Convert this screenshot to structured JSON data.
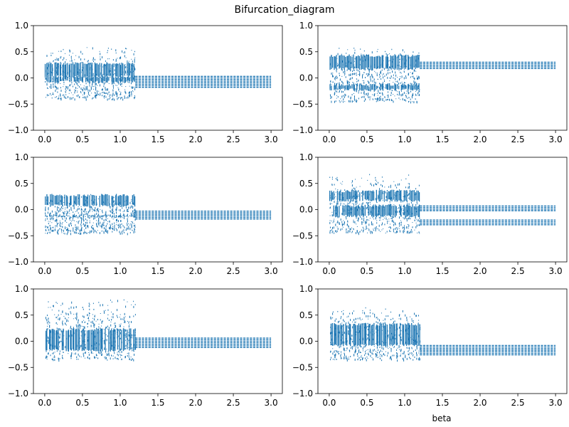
{
  "figure": {
    "title": "Bifurcation_diagram",
    "xlabel": "beta",
    "marker_color": "#1f77b4",
    "xticks": [
      0.0,
      0.5,
      1.0,
      1.5,
      2.0,
      2.5,
      3.0
    ],
    "xtick_labels": [
      "0.0",
      "0.5",
      "1.0",
      "1.5",
      "2.0",
      "2.5",
      "3.0"
    ],
    "yticks": [
      1.0,
      0.5,
      0.0,
      -0.5,
      -1.0
    ],
    "ytick_labels": [
      "1.0",
      "0.5",
      "0.0",
      "−0.5",
      "−1.0"
    ]
  },
  "chart_data": [
    {
      "type": "scatter",
      "panel": "top-left",
      "xlim": [
        -0.15,
        3.15
      ],
      "ylim": [
        -1.0,
        1.0
      ],
      "grid": false,
      "chaotic_region": {
        "beta_range": [
          0.0,
          1.2
        ],
        "y_min": -0.4,
        "y_max": 0.6,
        "dense_bands": [
          [
            0.0,
            0.3
          ],
          [
            -0.1,
            0.05
          ]
        ]
      },
      "periodic_region": {
        "beta_range": [
          1.2,
          3.0
        ],
        "y_levels": [
          0.03,
          0.0,
          -0.03,
          -0.06,
          -0.09,
          -0.12,
          -0.15,
          -0.18
        ]
      }
    },
    {
      "type": "scatter",
      "panel": "top-right",
      "xlim": [
        -0.15,
        3.15
      ],
      "ylim": [
        -1.0,
        1.0
      ],
      "grid": false,
      "chaotic_region": {
        "beta_range": [
          0.0,
          1.2
        ],
        "y_min": -0.45,
        "y_max": 0.6,
        "dense_bands": [
          [
            0.15,
            0.45
          ],
          [
            -0.25,
            -0.1
          ]
        ]
      },
      "periodic_region": {
        "beta_range": [
          1.2,
          3.0
        ],
        "y_levels": [
          0.3,
          0.27,
          0.24,
          0.21,
          0.18
        ]
      }
    },
    {
      "type": "scatter",
      "panel": "middle-left",
      "xlim": [
        -0.15,
        3.15
      ],
      "ylim": [
        -1.0,
        1.0
      ],
      "grid": false,
      "chaotic_region": {
        "beta_range": [
          0.0,
          1.2
        ],
        "y_min": -0.45,
        "y_max": 0.3,
        "dense_bands": [
          [
            0.05,
            0.3
          ],
          [
            -0.15,
            -0.1
          ]
        ]
      },
      "periodic_region": {
        "beta_range": [
          1.2,
          3.0
        ],
        "y_levels": [
          -0.03,
          -0.06,
          -0.09,
          -0.12,
          -0.15,
          -0.18
        ]
      }
    },
    {
      "type": "scatter",
      "panel": "middle-right",
      "xlim": [
        -0.15,
        3.15
      ],
      "ylim": [
        -1.0,
        1.0
      ],
      "grid": false,
      "chaotic_region": {
        "beta_range": [
          0.0,
          1.2
        ],
        "y_min": -0.45,
        "y_max": 0.68,
        "dense_bands": [
          [
            0.15,
            0.38
          ],
          [
            -0.15,
            0.1
          ]
        ]
      },
      "periodic_region": {
        "beta_range": [
          1.2,
          3.0
        ],
        "y_levels": [
          0.07,
          0.04,
          0.01,
          -0.02,
          -0.2,
          -0.23,
          -0.26,
          -0.29
        ]
      }
    },
    {
      "type": "scatter",
      "panel": "bottom-left",
      "xlim": [
        -0.15,
        3.15
      ],
      "ylim": [
        -1.0,
        1.0
      ],
      "grid": false,
      "chaotic_region": {
        "beta_range": [
          0.0,
          1.2
        ],
        "y_min": -0.35,
        "y_max": 0.82,
        "dense_bands": [
          [
            -0.2,
            0.25
          ]
        ]
      },
      "periodic_region": {
        "beta_range": [
          1.2,
          3.0
        ],
        "y_levels": [
          0.06,
          0.03,
          0.0,
          -0.03,
          -0.06,
          -0.09,
          -0.12
        ]
      }
    },
    {
      "type": "scatter",
      "panel": "bottom-right",
      "xlim": [
        -0.15,
        3.15
      ],
      "ylim": [
        -1.0,
        1.0
      ],
      "grid": false,
      "chaotic_region": {
        "beta_range": [
          0.0,
          1.2
        ],
        "y_min": -0.35,
        "y_max": 0.65,
        "dense_bands": [
          [
            -0.1,
            0.35
          ]
        ]
      },
      "periodic_region": {
        "beta_range": [
          1.2,
          3.0
        ],
        "y_levels": [
          -0.08,
          -0.11,
          -0.14,
          -0.17,
          -0.2,
          -0.23,
          -0.26
        ]
      }
    }
  ]
}
